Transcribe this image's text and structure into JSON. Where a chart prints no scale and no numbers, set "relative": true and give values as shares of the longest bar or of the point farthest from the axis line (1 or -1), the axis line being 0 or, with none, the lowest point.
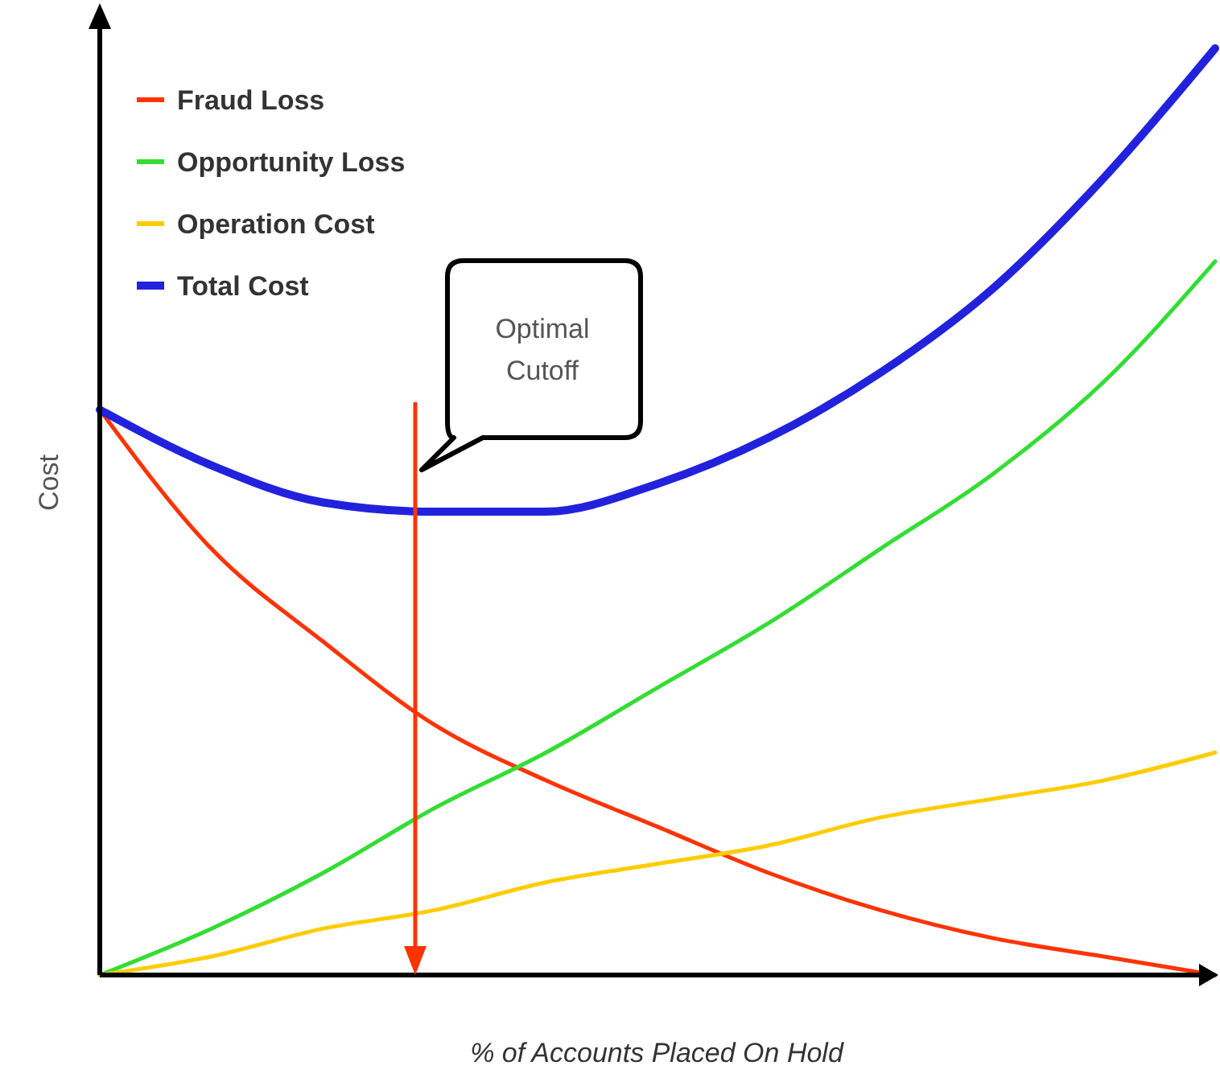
{
  "chart_data": {
    "type": "line",
    "relative": true,
    "xlabel": "% of Accounts Placed On Hold",
    "ylabel": "Cost",
    "categories": [
      null,
      null,
      null,
      null,
      null,
      null,
      null,
      null,
      null,
      null,
      null
    ],
    "legend": "top left",
    "grid": false,
    "line_style": "solid",
    "annotations": [
      "Optimal Cutoff"
    ],
    "series": [
      {
        "name": "Fraud Loss",
        "color": "#ff3300",
        "values": [
          0.61,
          0.46,
          0.36,
          0.27,
          0.21,
          0.16,
          0.11,
          0.07,
          0.04,
          0.02,
          0.0
        ]
      },
      {
        "name": "Opportunity Loss",
        "color": "#33dd33",
        "values": [
          0,
          0.05,
          0.11,
          0.18,
          0.24,
          0.31,
          0.38,
          0.46,
          0.54,
          0.64,
          0.77
        ]
      },
      {
        "name": "Operation Cost",
        "color": "#ffcc00",
        "values": [
          0,
          0.02,
          0.05,
          0.07,
          0.1,
          0.12,
          0.14,
          0.17,
          0.19,
          0.21,
          0.24
        ]
      },
      {
        "name": "Total Cost",
        "color": "#2222dd",
        "values": [
          0.61,
          0.55,
          0.51,
          0.5,
          0.5,
          0.53,
          0.58,
          0.65,
          0.74,
          0.86,
          1.0
        ]
      }
    ]
  }
}
